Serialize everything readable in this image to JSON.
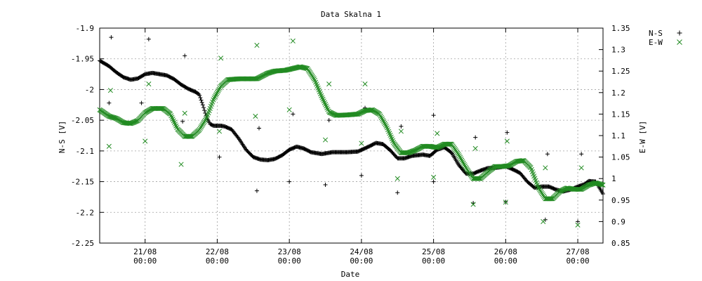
{
  "chart_data": {
    "type": "scatter",
    "title": "Data Skalna 1",
    "xlabel": "Date",
    "ylabel": "N-S [V]",
    "y2label": "E-W [V]",
    "grid": true,
    "legend_position": "top-right",
    "x_unit": "days from 21/08 00:00",
    "xlim": [
      -0.63,
      6.35
    ],
    "ylim": [
      -2.25,
      -1.9
    ],
    "y2lim": [
      0.85,
      1.35
    ],
    "x_ticks": [
      {
        "x": 0,
        "date": "21/08",
        "time": "00:00"
      },
      {
        "x": 1,
        "date": "22/08",
        "time": "00:00"
      },
      {
        "x": 2,
        "date": "23/08",
        "time": "00:00"
      },
      {
        "x": 3,
        "date": "24/08",
        "time": "00:00"
      },
      {
        "x": 4,
        "date": "25/08",
        "time": "00:00"
      },
      {
        "x": 5,
        "date": "26/08",
        "time": "00:00"
      },
      {
        "x": 6,
        "date": "27/08",
        "time": "00:00"
      }
    ],
    "y_ticks": [
      "-1.9",
      "-1.95",
      "-2",
      "-2.05",
      "-2.1",
      "-2.15",
      "-2.2",
      "-2.25"
    ],
    "y_tick_values": [
      -1.9,
      -1.95,
      -2.0,
      -2.05,
      -2.1,
      -2.15,
      -2.2,
      -2.25
    ],
    "y2_ticks": [
      "1.35",
      "1.3",
      "1.25",
      "1.2",
      "1.15",
      "1.1",
      "1.05",
      "1",
      "0.95",
      "0.9",
      "0.85"
    ],
    "y2_tick_values": [
      1.35,
      1.3,
      1.25,
      1.2,
      1.15,
      1.1,
      1.05,
      1.0,
      0.95,
      0.9,
      0.85
    ],
    "series": [
      {
        "name": "N-S",
        "axis": "left",
        "marker": "plus",
        "color": "#000000",
        "trend": [
          [
            -0.63,
            -1.953
          ],
          [
            -0.5,
            -1.962
          ],
          [
            -0.4,
            -1.972
          ],
          [
            -0.3,
            -1.98
          ],
          [
            -0.2,
            -1.984
          ],
          [
            -0.1,
            -1.982
          ],
          [
            0.0,
            -1.975
          ],
          [
            0.1,
            -1.973
          ],
          [
            0.2,
            -1.975
          ],
          [
            0.3,
            -1.977
          ],
          [
            0.4,
            -1.983
          ],
          [
            0.5,
            -1.992
          ],
          [
            0.6,
            -1.999
          ],
          [
            0.7,
            -2.004
          ],
          [
            0.75,
            -2.008
          ],
          [
            0.8,
            -2.025
          ],
          [
            0.85,
            -2.045
          ],
          [
            0.9,
            -2.056
          ],
          [
            0.95,
            -2.059
          ],
          [
            1.05,
            -2.059
          ],
          [
            1.1,
            -2.06
          ],
          [
            1.2,
            -2.065
          ],
          [
            1.3,
            -2.08
          ],
          [
            1.4,
            -2.098
          ],
          [
            1.5,
            -2.11
          ],
          [
            1.6,
            -2.114
          ],
          [
            1.7,
            -2.115
          ],
          [
            1.8,
            -2.113
          ],
          [
            1.9,
            -2.107
          ],
          [
            2.0,
            -2.098
          ],
          [
            2.1,
            -2.093
          ],
          [
            2.2,
            -2.096
          ],
          [
            2.3,
            -2.102
          ],
          [
            2.45,
            -2.105
          ],
          [
            2.6,
            -2.102
          ],
          [
            2.8,
            -2.102
          ],
          [
            2.95,
            -2.101
          ],
          [
            3.1,
            -2.093
          ],
          [
            3.2,
            -2.087
          ],
          [
            3.3,
            -2.089
          ],
          [
            3.4,
            -2.099
          ],
          [
            3.5,
            -2.112
          ],
          [
            3.6,
            -2.112
          ],
          [
            3.7,
            -2.108
          ],
          [
            3.85,
            -2.106
          ],
          [
            3.95,
            -2.108
          ],
          [
            4.05,
            -2.098
          ],
          [
            4.15,
            -2.094
          ],
          [
            4.25,
            -2.103
          ],
          [
            4.35,
            -2.123
          ],
          [
            4.45,
            -2.137
          ],
          [
            4.55,
            -2.137
          ],
          [
            4.65,
            -2.132
          ],
          [
            4.75,
            -2.128
          ],
          [
            4.9,
            -2.127
          ],
          [
            5.0,
            -2.125
          ],
          [
            5.1,
            -2.13
          ],
          [
            5.2,
            -2.136
          ],
          [
            5.3,
            -2.15
          ],
          [
            5.4,
            -2.16
          ],
          [
            5.5,
            -2.158
          ],
          [
            5.6,
            -2.158
          ],
          [
            5.7,
            -2.163
          ],
          [
            5.8,
            -2.166
          ],
          [
            5.9,
            -2.163
          ],
          [
            6.0,
            -2.158
          ],
          [
            6.1,
            -2.154
          ],
          [
            6.15,
            -2.149
          ],
          [
            6.25,
            -2.15
          ],
          [
            6.35,
            -2.17
          ]
        ],
        "outliers": [
          [
            -0.47,
            -1.915
          ],
          [
            -0.5,
            -2.022
          ],
          [
            -0.05,
            -2.022
          ],
          [
            0.05,
            -1.918
          ],
          [
            0.55,
            -1.945
          ],
          [
            0.52,
            -2.052
          ],
          [
            1.03,
            -2.11
          ],
          [
            1.55,
            -2.165
          ],
          [
            1.58,
            -2.063
          ],
          [
            2.05,
            -2.04
          ],
          [
            2.0,
            -2.15
          ],
          [
            2.5,
            -2.155
          ],
          [
            2.55,
            -2.05
          ],
          [
            3.0,
            -2.14
          ],
          [
            3.05,
            -2.03
          ],
          [
            3.5,
            -2.168
          ],
          [
            3.55,
            -2.06
          ],
          [
            4.0,
            -2.042
          ],
          [
            4.0,
            -2.15
          ],
          [
            4.55,
            -2.185
          ],
          [
            4.58,
            -2.078
          ],
          [
            5.02,
            -2.07
          ],
          [
            5.0,
            -2.183
          ],
          [
            5.55,
            -2.212
          ],
          [
            5.58,
            -2.105
          ],
          [
            6.0,
            -2.215
          ],
          [
            6.05,
            -2.105
          ]
        ]
      },
      {
        "name": "E-W",
        "axis": "right",
        "marker": "cross",
        "color": "#228b22",
        "trend": [
          [
            -0.63,
            1.16
          ],
          [
            -0.5,
            1.145
          ],
          [
            -0.4,
            1.14
          ],
          [
            -0.3,
            1.13
          ],
          [
            -0.2,
            1.128
          ],
          [
            -0.1,
            1.135
          ],
          [
            0.0,
            1.153
          ],
          [
            0.1,
            1.163
          ],
          [
            0.25,
            1.163
          ],
          [
            0.35,
            1.15
          ],
          [
            0.45,
            1.115
          ],
          [
            0.55,
            1.098
          ],
          [
            0.65,
            1.098
          ],
          [
            0.75,
            1.113
          ],
          [
            0.85,
            1.14
          ],
          [
            0.95,
            1.185
          ],
          [
            1.05,
            1.215
          ],
          [
            1.15,
            1.23
          ],
          [
            1.3,
            1.232
          ],
          [
            1.45,
            1.232
          ],
          [
            1.55,
            1.232
          ],
          [
            1.7,
            1.245
          ],
          [
            1.8,
            1.25
          ],
          [
            1.95,
            1.252
          ],
          [
            2.05,
            1.256
          ],
          [
            2.15,
            1.26
          ],
          [
            2.25,
            1.256
          ],
          [
            2.35,
            1.23
          ],
          [
            2.45,
            1.19
          ],
          [
            2.55,
            1.155
          ],
          [
            2.65,
            1.147
          ],
          [
            2.8,
            1.148
          ],
          [
            2.95,
            1.15
          ],
          [
            3.05,
            1.158
          ],
          [
            3.15,
            1.16
          ],
          [
            3.25,
            1.15
          ],
          [
            3.35,
            1.12
          ],
          [
            3.45,
            1.082
          ],
          [
            3.55,
            1.06
          ],
          [
            3.65,
            1.06
          ],
          [
            3.75,
            1.066
          ],
          [
            3.85,
            1.075
          ],
          [
            3.95,
            1.075
          ],
          [
            4.05,
            1.072
          ],
          [
            4.15,
            1.08
          ],
          [
            4.25,
            1.08
          ],
          [
            4.35,
            1.055
          ],
          [
            4.45,
            1.025
          ],
          [
            4.55,
            1.0
          ],
          [
            4.65,
            1.0
          ],
          [
            4.75,
            1.015
          ],
          [
            4.85,
            1.028
          ],
          [
            4.95,
            1.028
          ],
          [
            5.05,
            1.03
          ],
          [
            5.15,
            1.04
          ],
          [
            5.25,
            1.042
          ],
          [
            5.35,
            1.025
          ],
          [
            5.45,
            0.98
          ],
          [
            5.55,
            0.953
          ],
          [
            5.65,
            0.953
          ],
          [
            5.75,
            0.97
          ],
          [
            5.85,
            0.978
          ],
          [
            5.95,
            0.975
          ],
          [
            6.05,
            0.975
          ],
          [
            6.15,
            0.985
          ],
          [
            6.25,
            0.99
          ],
          [
            6.35,
            0.985
          ]
        ],
        "outliers": [
          [
            -0.48,
            1.205
          ],
          [
            -0.5,
            1.075
          ],
          [
            0.05,
            1.22
          ],
          [
            0.0,
            1.087
          ],
          [
            0.55,
            1.152
          ],
          [
            0.5,
            1.033
          ],
          [
            1.05,
            1.28
          ],
          [
            1.03,
            1.11
          ],
          [
            1.55,
            1.31
          ],
          [
            1.53,
            1.145
          ],
          [
            2.05,
            1.32
          ],
          [
            2.0,
            1.16
          ],
          [
            2.55,
            1.22
          ],
          [
            2.5,
            1.09
          ],
          [
            3.05,
            1.22
          ],
          [
            3.0,
            1.082
          ],
          [
            3.55,
            1.11
          ],
          [
            3.5,
            1.0
          ],
          [
            4.05,
            1.105
          ],
          [
            4.0,
            1.003
          ],
          [
            4.55,
            0.94
          ],
          [
            4.58,
            1.07
          ],
          [
            5.02,
            1.087
          ],
          [
            5.0,
            0.945
          ],
          [
            5.55,
            1.025
          ],
          [
            5.52,
            0.9
          ],
          [
            6.05,
            1.025
          ],
          [
            6.0,
            0.892
          ]
        ]
      }
    ]
  }
}
